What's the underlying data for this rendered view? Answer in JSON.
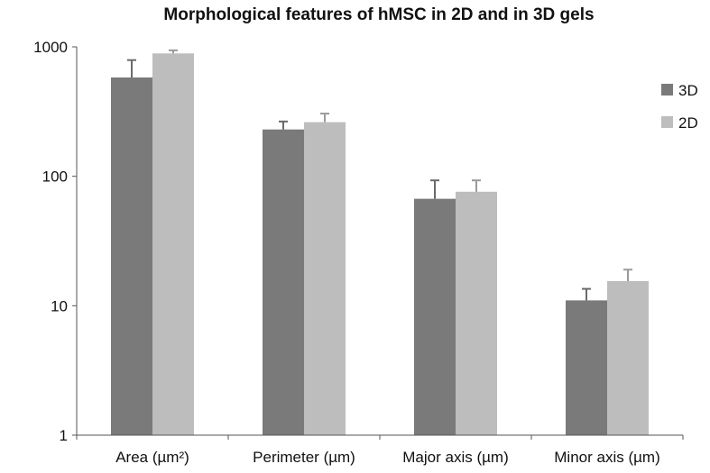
{
  "chart_data": {
    "type": "bar",
    "title": "Morphological features of hMSC in 2D and in 3D gels",
    "categories": [
      "Area (µm²)",
      "Perimeter (µm)",
      "Major axis (µm)",
      "Minor axis (µm)"
    ],
    "yscale": "log",
    "ylim": [
      1,
      1000
    ],
    "yticks": [
      1,
      10,
      100,
      1000
    ],
    "ytick_labels": [
      "1",
      "10",
      "100",
      "1000"
    ],
    "grid": false,
    "legend_position": "right",
    "series": [
      {
        "name": "3D",
        "color": "#7a7a7a",
        "values": [
          580,
          230,
          67,
          11
        ],
        "error_upper": [
          790,
          265,
          93,
          13.5
        ]
      },
      {
        "name": "2D",
        "color": "#bdbdbd",
        "values": [
          890,
          262,
          76,
          15.5
        ],
        "error_upper": [
          940,
          305,
          93,
          19
        ]
      }
    ]
  }
}
